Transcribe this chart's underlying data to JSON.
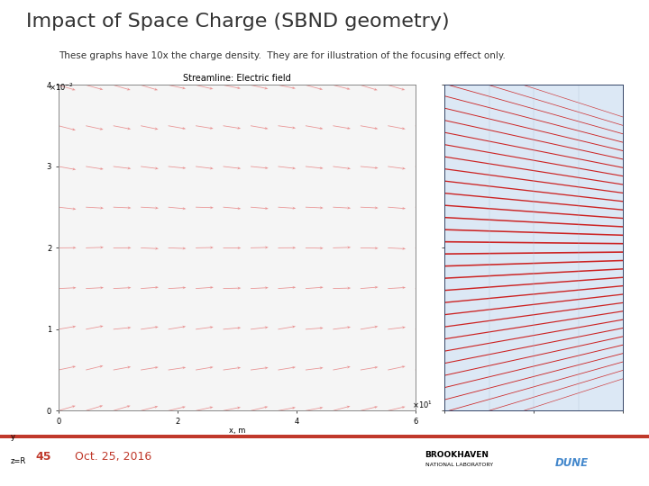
{
  "title": "Impact of Space Charge (SBND geometry)",
  "subtitle": "These graphs have 10x the charge density.  They are for illustration of the focusing effect only.",
  "title_color": "#333333",
  "subtitle_color": "#333333",
  "footer_line_color": "#C0392B",
  "page_number": "45",
  "date": "Oct. 25, 2016",
  "footer_text_color": "#C0392B",
  "bg_color": "#FFFFFF",
  "left_plot_title": "Streamline: Electric field",
  "arrow_color": "#E57373",
  "right_plot_bg": "#DCE8F5",
  "right_line_color": "#CC2222"
}
